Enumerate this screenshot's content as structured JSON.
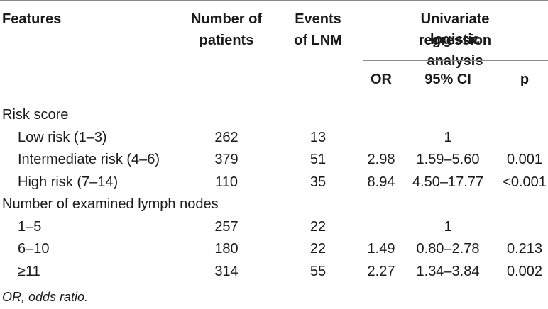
{
  "headers": {
    "features": "Features",
    "patients_line1": "Number of",
    "patients_line2": "patients",
    "events_line1": "Events",
    "events_line2": "of LNM",
    "univariate_line1": "Univariate logistic",
    "univariate_line2": "regression analysis",
    "or": "OR",
    "ci": "95% CI",
    "p": "p"
  },
  "rows": [
    {
      "feature": "Risk score",
      "indent": false,
      "patients": "",
      "events": "",
      "or": "",
      "ci": "",
      "p": ""
    },
    {
      "feature": "Low risk (1–3)",
      "indent": true,
      "patients": "262",
      "events": "13",
      "or": "",
      "ci": "1",
      "p": ""
    },
    {
      "feature": "Intermediate risk (4–6)",
      "indent": true,
      "patients": "379",
      "events": "51",
      "or": "2.98",
      "ci": "1.59–5.60",
      "p": "0.001"
    },
    {
      "feature": "High risk (7–14)",
      "indent": true,
      "patients": "110",
      "events": "35",
      "or": "8.94",
      "ci": "4.50–17.77",
      "p": "<0.001"
    },
    {
      "feature": "Number of examined lymph nodes",
      "indent": false,
      "patients": "",
      "events": "",
      "or": "",
      "ci": "",
      "p": ""
    },
    {
      "feature": "1–5",
      "indent": true,
      "patients": "257",
      "events": "22",
      "or": "",
      "ci": "1",
      "p": ""
    },
    {
      "feature": "6–10",
      "indent": true,
      "patients": "180",
      "events": "22",
      "or": "1.49",
      "ci": "0.80–2.78",
      "p": "0.213"
    },
    {
      "feature": "≥11",
      "indent": true,
      "patients": "314",
      "events": "55",
      "or": "2.27",
      "ci": "1.34–3.84",
      "p": "0.002"
    }
  ],
  "footnote": "OR, odds ratio."
}
